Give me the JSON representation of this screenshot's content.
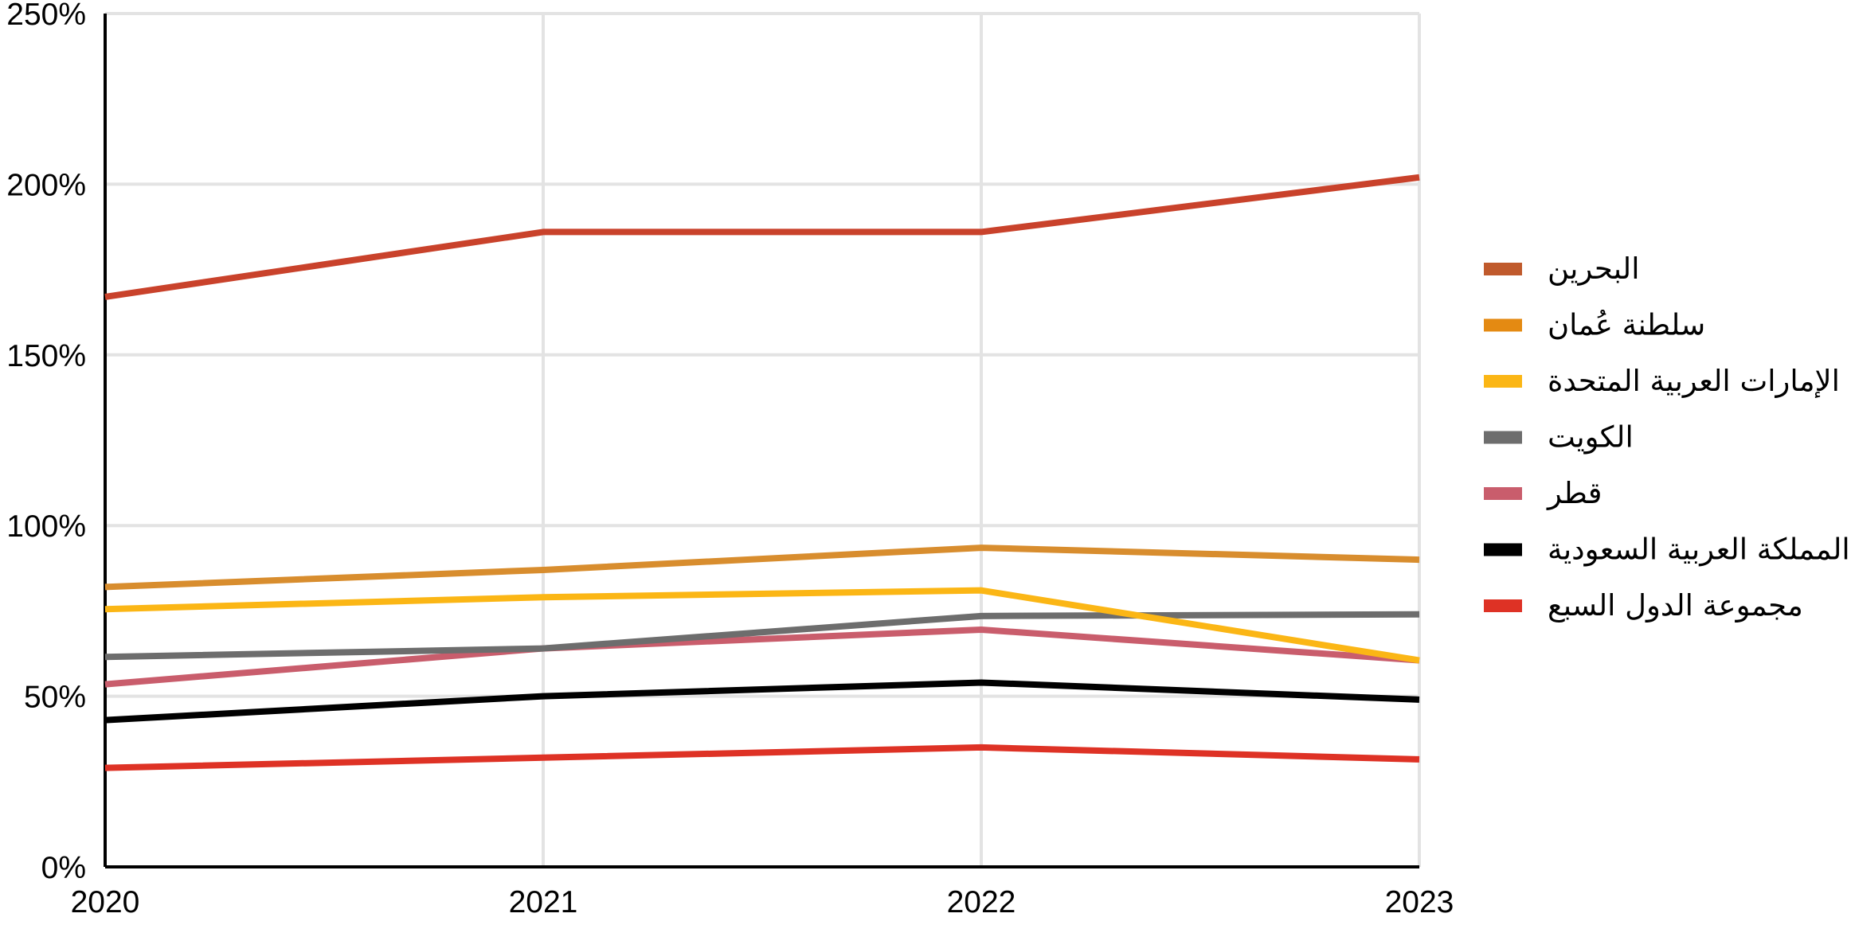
{
  "chart_data": {
    "type": "line",
    "title": "",
    "xlabel": "",
    "ylabel": "",
    "categories": [
      "2020",
      "2021",
      "2022",
      "2023"
    ],
    "y_tick_labels": [
      "0%",
      "50%",
      "100%",
      "150%",
      "200%",
      "250%"
    ],
    "y_ticks": [
      0,
      50,
      100,
      150,
      200,
      250
    ],
    "ylim": [
      0,
      250
    ],
    "grid": true,
    "legend_position": "right",
    "series": [
      {
        "name": "البحرين",
        "color": "#c9422b",
        "legend_color": "#c05a2c",
        "values": [
          167,
          186,
          186,
          202
        ]
      },
      {
        "name": "سلطنة عُمان",
        "color": "#d88d2e",
        "legend_color": "#e48a12",
        "values": [
          82,
          87,
          93.5,
          90
        ]
      },
      {
        "name": "الإمارات العربية المتحدة",
        "color": "#fbb615",
        "legend_color": "#fbb615",
        "values": [
          75.5,
          79,
          81,
          60.5
        ]
      },
      {
        "name": "الكويت",
        "color": "#6d6d6d",
        "legend_color": "#6d6d6d",
        "values": [
          61.5,
          64,
          73.5,
          74
        ]
      },
      {
        "name": "قطر",
        "color": "#c95d6c",
        "legend_color": "#c95d6c",
        "values": [
          53.5,
          64,
          69.5,
          60.5
        ]
      },
      {
        "name": "المملكة العربية السعودية",
        "color": "#000000",
        "legend_color": "#000000",
        "values": [
          43,
          50,
          54,
          49
        ]
      },
      {
        "name": "مجموعة الدول السبع",
        "color": "#de3225",
        "legend_color": "#de3225",
        "values": [
          29,
          32,
          35,
          31.5
        ]
      }
    ]
  }
}
